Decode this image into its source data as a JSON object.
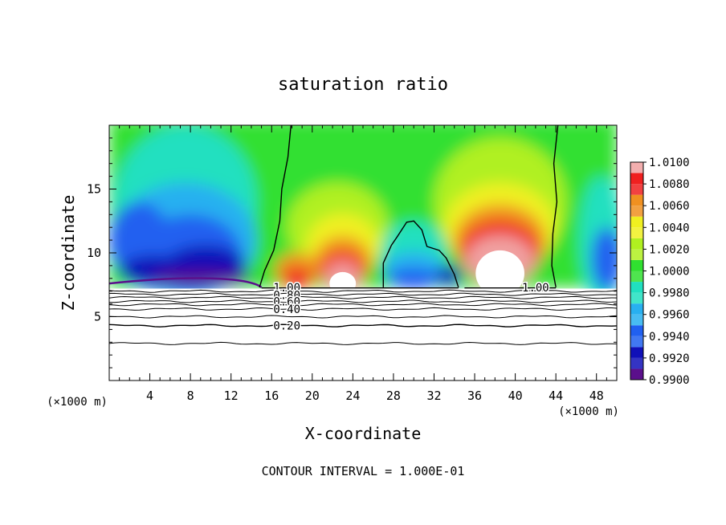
{
  "chart_data": {
    "type": "heatmap",
    "title": "saturation ratio",
    "xlabel": "X-coordinate",
    "ylabel": "Z-coordinate",
    "x_unit_label": "(×1000 m)",
    "y_unit_label": "(×1000 m)",
    "xlim": [
      0,
      50
    ],
    "ylim": [
      0,
      20
    ],
    "x_ticks": [
      4,
      8,
      12,
      16,
      20,
      24,
      28,
      32,
      36,
      40,
      44,
      48
    ],
    "y_ticks": [
      5,
      10,
      15
    ],
    "colorbar": {
      "min": 0.99,
      "max": 1.01,
      "levels": [
        0.99,
        0.992,
        0.994,
        0.996,
        0.998,
        1.0,
        1.002,
        1.004,
        1.006,
        1.008,
        1.01
      ],
      "tick_labels": [
        "0.9900",
        "0.9920",
        "0.9940",
        "0.9960",
        "0.9980",
        "1.0000",
        "1.0020",
        "1.0040",
        "1.0060",
        "1.0080",
        "1.0100"
      ],
      "colors": [
        "#5b0f8c",
        "#1010b8",
        "#2060f0",
        "#28b0f0",
        "#20e0c0",
        "#30e030",
        "#b0f020",
        "#f0f020",
        "#f09020",
        "#f02020",
        "#f0a0a0"
      ]
    },
    "contour_labels": [
      {
        "text": "1.00",
        "x": 17.5,
        "y": 7.3
      },
      {
        "text": "0.80",
        "x": 17.5,
        "y": 6.7
      },
      {
        "text": "0.60",
        "x": 17.5,
        "y": 6.2
      },
      {
        "text": "0.40",
        "x": 17.5,
        "y": 5.6
      },
      {
        "text": "0.20",
        "x": 17.5,
        "y": 4.3
      },
      {
        "text": "1.00",
        "x": 42.0,
        "y": 7.3
      }
    ],
    "contour_levels_below_cloud": [
      0.2,
      0.3,
      0.4,
      0.5,
      0.6,
      0.7,
      0.8,
      0.9,
      1.0
    ],
    "footer": "CONTOUR INTERVAL = 1.000E-01"
  },
  "colors": {
    "background": "#ffffff",
    "text": "#000000",
    "axis": "#000000"
  }
}
